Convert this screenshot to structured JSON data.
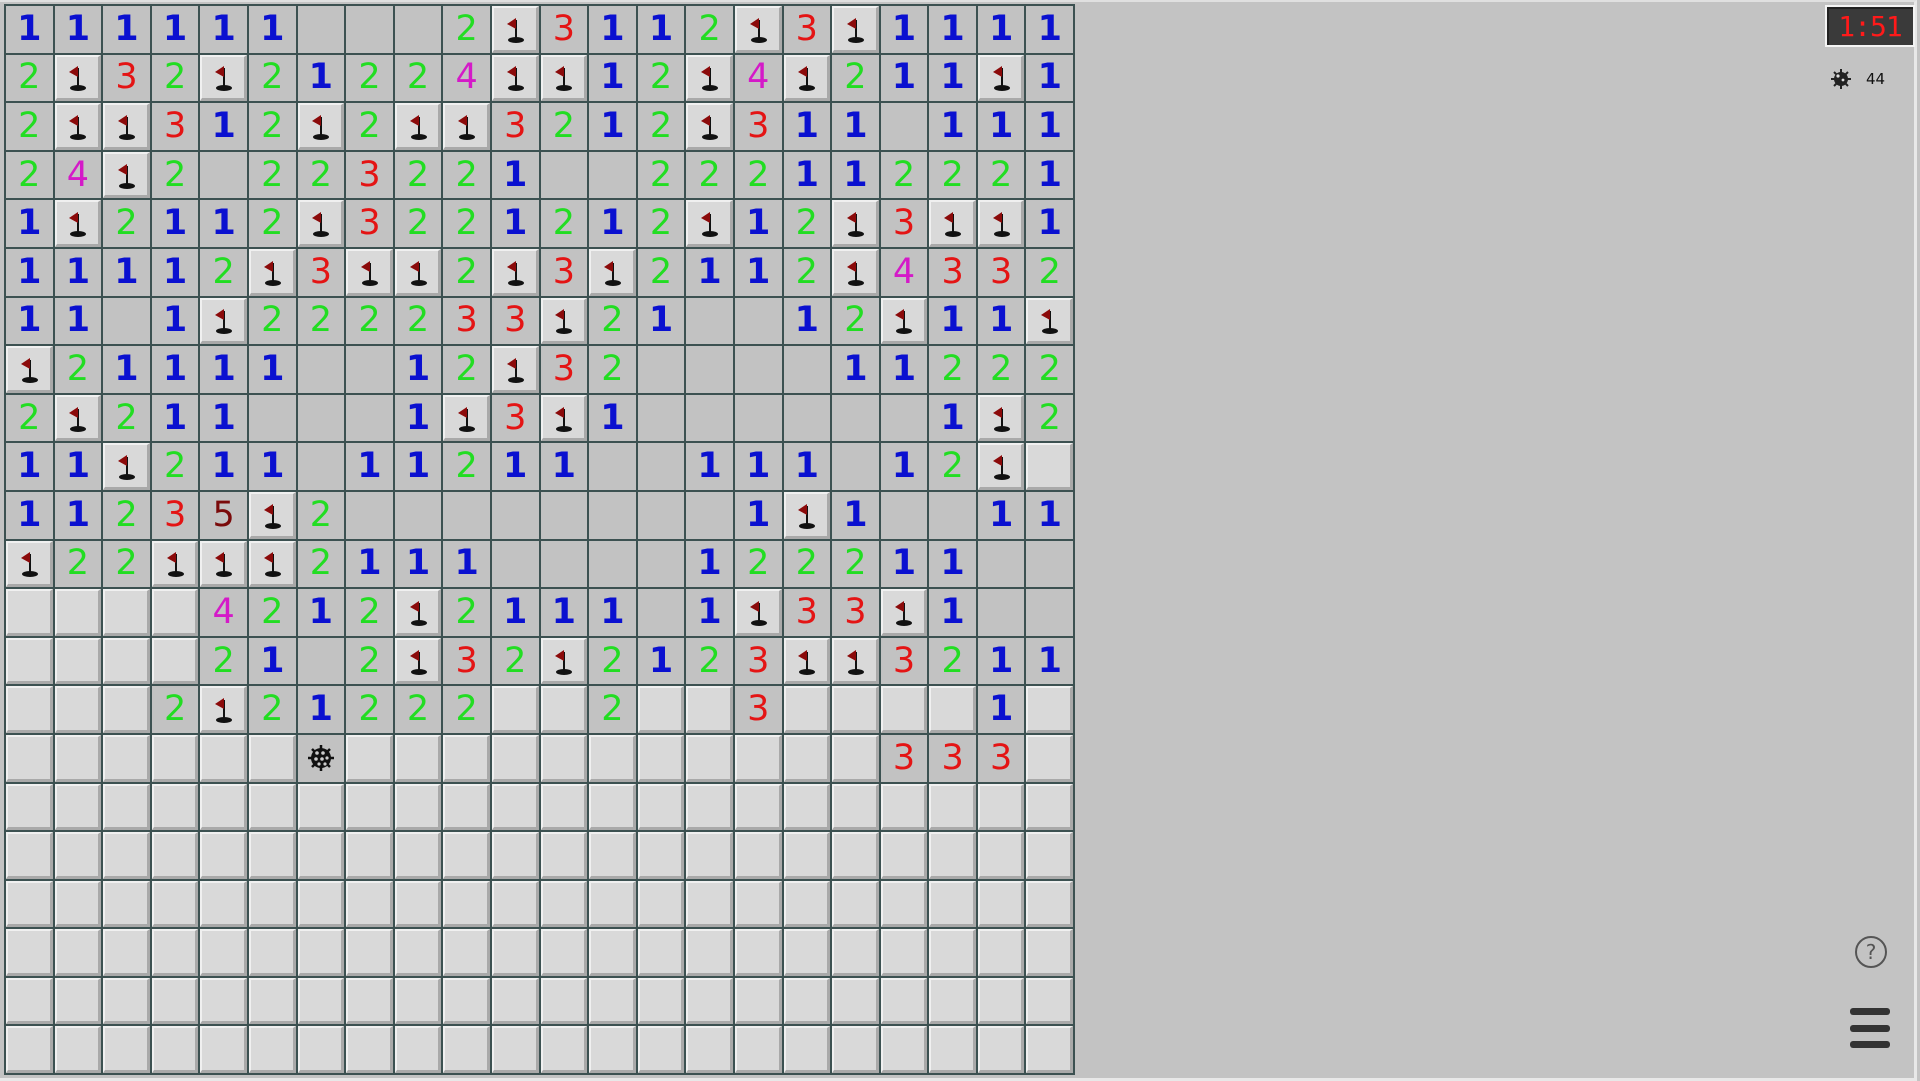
{
  "game": "Minesweeper",
  "timer": "1:51",
  "mines_remaining": "44",
  "help_label": "?",
  "icons": {
    "mine_counter": "mine-icon",
    "help": "help-icon",
    "menu": "hamburger-menu-icon"
  },
  "legend": {
    "F": "flag",
    "M": "mine",
    "#": "unrevealed",
    ".": "revealed-empty"
  },
  "colors": {
    "1": "#0a10d0",
    "2": "#22dd22",
    "3": "#e41414",
    "4": "#d41ac8",
    "5": "#7a0a0a",
    "timer": "#ff1a1a"
  },
  "board": [
    "111111...2F3112F3F1111",
    "2F32F21224FF12F4F211F1",
    "2FF312F2FF3212F311.111",
    "24F2.223221..222112221",
    "1F2112F3221212F12F3FF1",
    "11112F3FF2F3F2112F4332",
    "11.1F222233F21..12F11F",
    "F21111..12F32....11222",
    "2F211...1F3F1......1F2",
    "11F21 1.11211..111.12F",
    "11235F2........1F1..11",
    "F22FFF2111....122211..",
    "####4212F2111.1F33F1..",
    "####21.2F32F2123FF3211",
    "###2F21222##2##3####1##",
    "######M###########333#",
    "######################",
    "######################",
    "######################",
    "######################",
    "######################",
    "######################"
  ]
}
